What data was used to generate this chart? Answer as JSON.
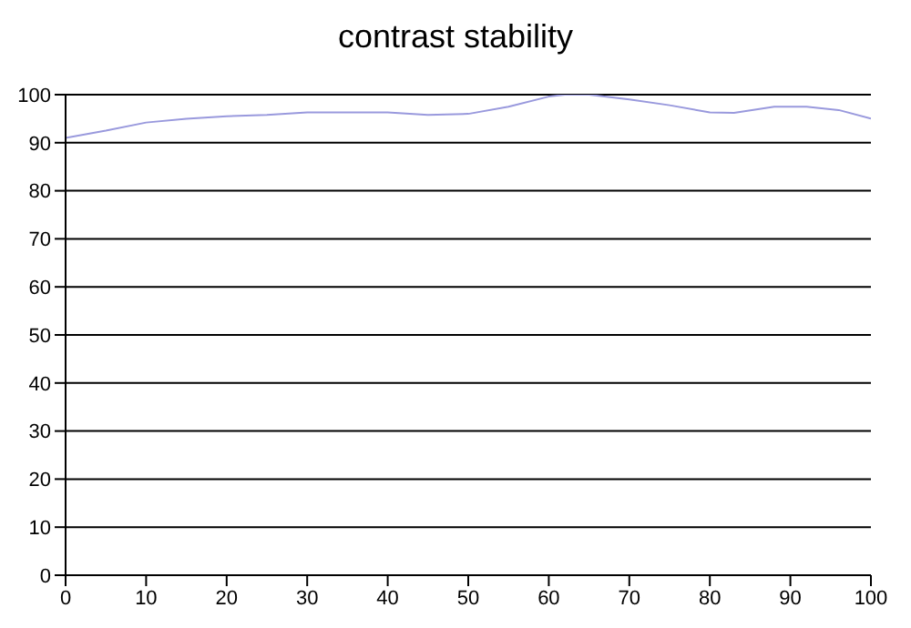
{
  "chart_data": {
    "type": "line",
    "title": "contrast stability",
    "x": [
      0,
      5,
      10,
      15,
      20,
      25,
      30,
      35,
      40,
      45,
      50,
      55,
      60,
      62,
      65,
      70,
      75,
      80,
      83,
      88,
      92,
      96,
      100
    ],
    "series": [
      {
        "color": "#9999dd",
        "values": [
          91,
          92.5,
          94.2,
          95,
          95.5,
          95.8,
          96.3,
          96.3,
          96.3,
          95.8,
          96,
          97.5,
          99.6,
          100,
          100,
          99,
          97.8,
          96.3,
          96.2,
          97.5,
          97.5,
          96.8,
          95
        ]
      }
    ],
    "xlim": [
      0,
      100
    ],
    "xticks": [
      0,
      10,
      20,
      30,
      40,
      50,
      60,
      70,
      80,
      90,
      100
    ],
    "ylim": [
      0,
      100
    ],
    "yticks": [
      0,
      10,
      20,
      30,
      40,
      50,
      60,
      70,
      80,
      90,
      100
    ],
    "grid": "y",
    "legend": false,
    "marker": "none",
    "line_style": "solid"
  }
}
